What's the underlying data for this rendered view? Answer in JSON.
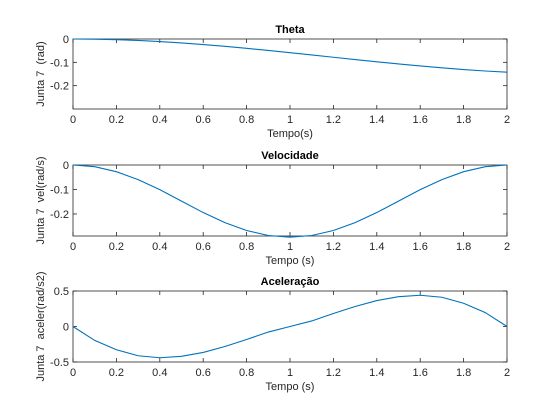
{
  "figure": {
    "background": "#ffffff",
    "line_color": "#0072BD"
  },
  "chart_data": [
    {
      "type": "line",
      "title": "Theta",
      "xlabel": "Tempo(s)",
      "ylabel": "Junta 7  (rad)",
      "xlim": [
        0,
        2
      ],
      "ylim": [
        -0.3,
        0
      ],
      "xticks": [
        "0",
        "0.2",
        "0.4",
        "0.6",
        "0.8",
        "1",
        "1.2",
        "1.4",
        "1.6",
        "1.8",
        "2"
      ],
      "yticks": [
        {
          "value": 0,
          "label": "0"
        },
        {
          "value": -0.1,
          "label": "-0.1"
        },
        {
          "value": -0.2,
          "label": "-0.2"
        }
      ],
      "series": [
        {
          "x": [
            0,
            0.1,
            0.2,
            0.3,
            0.4,
            0.5,
            0.6,
            0.7,
            0.8,
            0.9,
            1.0,
            1.1,
            1.2,
            1.3,
            1.4,
            1.5,
            1.6,
            1.7,
            1.8,
            1.9,
            2.0
          ],
          "values": [
            0,
            -0.0007,
            -0.0029,
            -0.0063,
            -0.011,
            -0.0169,
            -0.0238,
            -0.0315,
            -0.04,
            -0.0491,
            -0.0586,
            -0.0683,
            -0.0782,
            -0.088,
            -0.0976,
            -0.1069,
            -0.1156,
            -0.1236,
            -0.1309,
            -0.1371,
            -0.1423
          ]
        }
      ],
      "grid": false,
      "legend": "none"
    },
    {
      "type": "line",
      "title": "Velocidade",
      "xlabel": "Tempo (s)",
      "ylabel": "Junta 7  vel(rad/s)",
      "xlim": [
        0,
        2
      ],
      "ylim": [
        -0.29,
        0
      ],
      "xticks": [
        "0",
        "0.2",
        "0.4",
        "0.6",
        "0.8",
        "1",
        "1.2",
        "1.4",
        "1.6",
        "1.8",
        "2"
      ],
      "yticks": [
        {
          "value": 0,
          "label": "0"
        },
        {
          "value": -0.1,
          "label": "-0.1"
        },
        {
          "value": -0.2,
          "label": "-0.2"
        }
      ],
      "series": [
        {
          "x": [
            0,
            0.1,
            0.2,
            0.3,
            0.4,
            0.5,
            0.6,
            0.7,
            0.8,
            0.9,
            1.0,
            1.1,
            1.2,
            1.3,
            1.4,
            1.5,
            1.6,
            1.7,
            1.8,
            1.9,
            2.0
          ],
          "values": [
            0,
            -0.007,
            -0.0274,
            -0.0596,
            -0.1008,
            -0.1475,
            -0.1942,
            -0.2354,
            -0.2676,
            -0.288,
            -0.295,
            -0.288,
            -0.2676,
            -0.2354,
            -0.1942,
            -0.1475,
            -0.1008,
            -0.0596,
            -0.0274,
            -0.007,
            0
          ]
        }
      ],
      "grid": false,
      "legend": "none"
    },
    {
      "type": "line",
      "title": "Aceleração",
      "xlabel": "Tempo (s)",
      "ylabel": "Junta 7  aceler(rad/s2)",
      "xlim": [
        0,
        2
      ],
      "ylim": [
        -0.5,
        0.5
      ],
      "xticks": [
        "0",
        "0.2",
        "0.4",
        "0.6",
        "0.8",
        "1",
        "1.2",
        "1.4",
        "1.6",
        "1.8",
        "2"
      ],
      "yticks": [
        {
          "value": 0.5,
          "label": "0.5"
        },
        {
          "value": 0,
          "label": "0"
        },
        {
          "value": -0.5,
          "label": "-0.5"
        }
      ],
      "series": [
        {
          "x": [
            0,
            0.1,
            0.2,
            0.3,
            0.4,
            0.5,
            0.6,
            0.7,
            0.8,
            0.9,
            1.0,
            1.1,
            1.2,
            1.3,
            1.4,
            1.5,
            1.6,
            1.7,
            1.8,
            1.9,
            2.0
          ],
          "values": [
            0,
            -0.196,
            -0.327,
            -0.412,
            -0.44,
            -0.42,
            -0.365,
            -0.282,
            -0.183,
            -0.078,
            0,
            0.078,
            0.183,
            0.282,
            0.365,
            0.42,
            0.44,
            0.412,
            0.327,
            0.196,
            0
          ]
        }
      ],
      "grid": false,
      "legend": "none"
    }
  ]
}
